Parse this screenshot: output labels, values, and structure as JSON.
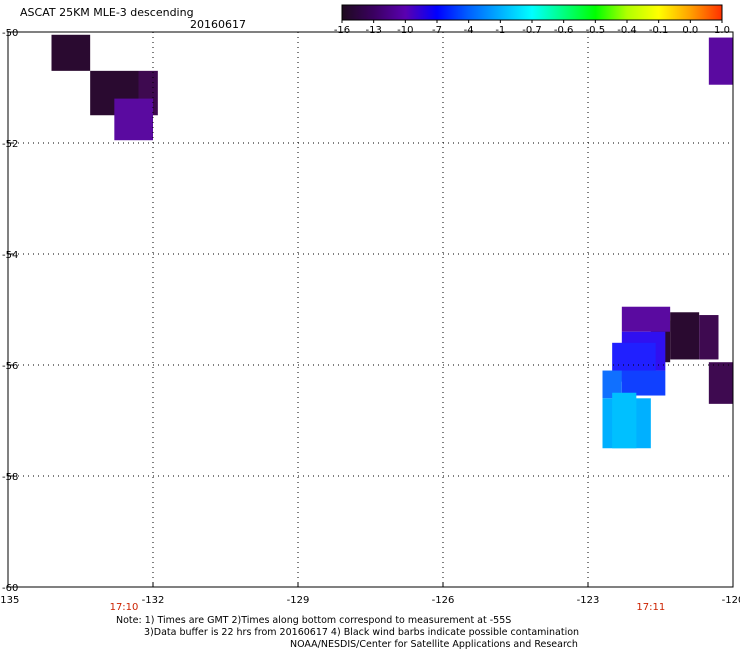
{
  "chart_data": {
    "type": "heatmap",
    "title": "ASCAT 25KM MLE-3 descending",
    "date": "20160617",
    "xlim": [
      -135,
      -120
    ],
    "ylim": [
      -60,
      -50
    ],
    "x_ticks": [
      -135,
      -132,
      -129,
      -126,
      -123,
      -120
    ],
    "y_ticks": [
      -50,
      -52,
      -54,
      -56,
      -58,
      -60
    ],
    "x_tick_labels": [
      "-135",
      "-132",
      "-129",
      "-126",
      "-123",
      "-120"
    ],
    "y_tick_labels": [
      "-50",
      "-52",
      "-54",
      "-56",
      "-58",
      "-60"
    ],
    "grid": "dotted",
    "colorbar": {
      "placement": "top-right",
      "labels": [
        "-16",
        "-13",
        "-10",
        "-7",
        "-4",
        "-1",
        "-0.7",
        "-0.6",
        "-0.5",
        "-0.4",
        "-0.1",
        "0.0",
        "1.0"
      ],
      "colors": [
        "#1e0a1e",
        "#3a0060",
        "#5a00b0",
        "#0000ff",
        "#0060ff",
        "#00b0ff",
        "#00ffff",
        "#00ff80",
        "#00ff00",
        "#b0ff00",
        "#ffff00",
        "#ffa000",
        "#ff3000"
      ]
    },
    "time_labels": [
      {
        "x": -132.6,
        "text": "17:10"
      },
      {
        "x": -121.7,
        "text": "17:11"
      }
    ],
    "cells": [
      {
        "lon0": -134.1,
        "lon1": -133.3,
        "lat0": -50.05,
        "lat1": -50.7,
        "value": -16,
        "color": "#2a0a30"
      },
      {
        "lon0": -133.3,
        "lon1": -132.3,
        "lat0": -50.7,
        "lat1": -51.5,
        "value": -16,
        "color": "#2a0a30"
      },
      {
        "lon0": -132.3,
        "lon1": -131.9,
        "lat0": -50.7,
        "lat1": -51.5,
        "value": -13,
        "color": "#3e0a50"
      },
      {
        "lon0": -132.8,
        "lon1": -132.0,
        "lat0": -51.2,
        "lat1": -51.95,
        "value": -10,
        "color": "#5a0aa0"
      },
      {
        "lon0": -120.5,
        "lon1": -120.0,
        "lat0": -50.1,
        "lat1": -50.95,
        "value": -10,
        "color": "#5a0aa0"
      },
      {
        "lon0": -121.7,
        "lon1": -121.3,
        "lat0": -55.2,
        "lat1": -55.95,
        "value": -16,
        "color": "#2a0a30"
      },
      {
        "lon0": -122.3,
        "lon1": -121.3,
        "lat0": -54.95,
        "lat1": -55.4,
        "value": -10,
        "color": "#5a0aa0"
      },
      {
        "lon0": -121.3,
        "lon1": -120.7,
        "lat0": -55.05,
        "lat1": -55.9,
        "value": -16,
        "color": "#2a0a30"
      },
      {
        "lon0": -120.7,
        "lon1": -120.3,
        "lat0": -55.1,
        "lat1": -55.9,
        "value": -13,
        "color": "#3e0a50"
      },
      {
        "lon0": -120.5,
        "lon1": -120.0,
        "lat0": -55.95,
        "lat1": -56.7,
        "value": -13,
        "color": "#3e0a50"
      },
      {
        "lon0": -122.3,
        "lon1": -121.4,
        "lat0": -55.4,
        "lat1": -56.1,
        "value": -7,
        "color": "#3010f0"
      },
      {
        "lon0": -122.5,
        "lon1": -121.6,
        "lat0": -55.6,
        "lat1": -56.3,
        "value": -7,
        "color": "#2020ff"
      },
      {
        "lon0": -122.3,
        "lon1": -121.4,
        "lat0": -56.1,
        "lat1": -56.55,
        "value": -7,
        "color": "#1040ff"
      },
      {
        "lon0": -122.7,
        "lon1": -122.3,
        "lat0": -56.1,
        "lat1": -56.6,
        "value": -4,
        "color": "#1070ff"
      },
      {
        "lon0": -122.7,
        "lon1": -121.7,
        "lat0": -56.6,
        "lat1": -57.5,
        "value": -1,
        "color": "#00b0ff"
      },
      {
        "lon0": -122.5,
        "lon1": -122.0,
        "lat0": -56.5,
        "lat1": -57.5,
        "value": -1,
        "color": "#00c0ff"
      }
    ]
  },
  "notes": {
    "line1": "Note: 1) Times are GMT 2)Times along bottom correspond to measurement at -55S",
    "line2": "3)Data buffer is 22 hrs from 20160617 4) Black wind barbs indicate possible contamination",
    "line3": "NOAA/NESDIS/Center for Satellite Applications and Research"
  }
}
